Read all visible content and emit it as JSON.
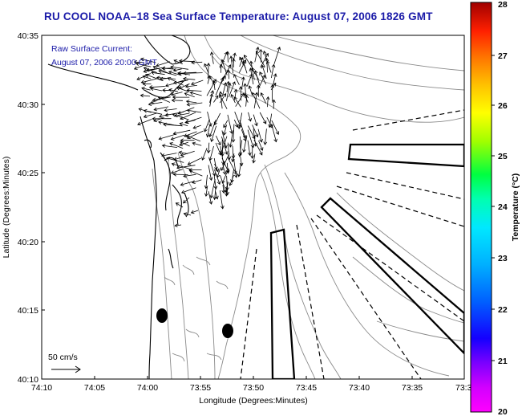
{
  "title": "RU COOL  NOAA–18  Sea Surface Temperature:  August 07, 2006 1826 GMT",
  "legend": {
    "line1": "Raw Surface Current:",
    "line2": "August 07, 2006 20:00 GMT"
  },
  "scale": {
    "label": "50 cm/s"
  },
  "axes": {
    "xlabel": "Longitude (Degrees:Minutes)",
    "ylabel": "Latitude (Degrees:Minutes)",
    "xticks": [
      "74:10",
      "74:05",
      "74:00",
      "73:55",
      "73:50",
      "73:45",
      "73:40",
      "73:35",
      "73:3"
    ],
    "yticks": [
      "40:35",
      "40:30",
      "40:25",
      "40:20",
      "40:15",
      "40:10"
    ]
  },
  "colorbar": {
    "label": "Temperature (°C)",
    "ticks": [
      "28",
      "27",
      "26",
      "25",
      "24",
      "23",
      "22",
      "21",
      "20"
    ],
    "min": 20,
    "max": 28
  },
  "colors": {
    "title": "#1a1aa8",
    "coast": "#000000",
    "bathymetry": "#888888"
  }
}
